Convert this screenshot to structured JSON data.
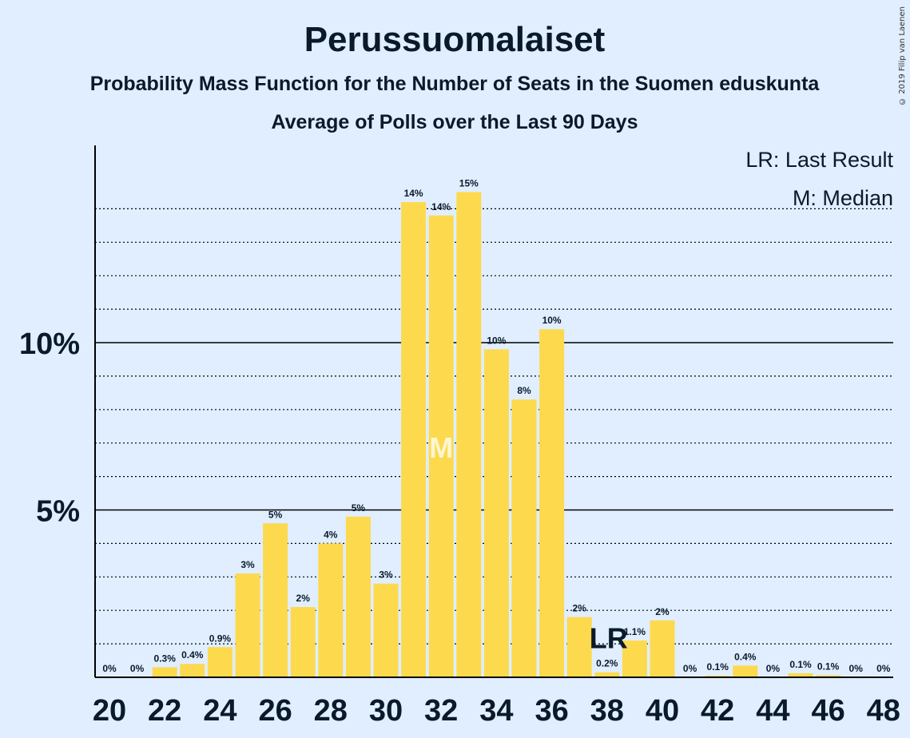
{
  "chart_data": {
    "type": "bar",
    "title": "Perussuomalaiset",
    "subtitle": "Probability Mass Function for the Number of Seats in the Suomen eduskunta",
    "subtitle2": "Average of Polls over the Last 90 Days",
    "copyright": "© 2019 Filip van Laenen",
    "legend": {
      "lr": "LR: Last Result",
      "median": "M: Median"
    },
    "y_tick_labels": [
      "5%",
      "10%"
    ],
    "y_ticks": [
      5,
      10
    ],
    "ylim": [
      0,
      15.9
    ],
    "x_tick_labels": [
      "20",
      "22",
      "24",
      "26",
      "28",
      "30",
      "32",
      "34",
      "36",
      "38",
      "40",
      "42",
      "44",
      "46",
      "48"
    ],
    "x": [
      20,
      21,
      22,
      23,
      24,
      25,
      26,
      27,
      28,
      29,
      30,
      31,
      32,
      33,
      34,
      35,
      36,
      37,
      38,
      39,
      40,
      41,
      42,
      43,
      44,
      45,
      46,
      47,
      48
    ],
    "values": [
      0,
      0,
      0.3,
      0.4,
      0.9,
      3.1,
      4.6,
      2.1,
      4.0,
      4.8,
      2.8,
      14.2,
      13.8,
      14.5,
      9.8,
      8.3,
      10.4,
      1.8,
      0.15,
      1.1,
      1.7,
      0,
      0.05,
      0.35,
      0,
      0.12,
      0.06,
      0,
      0
    ],
    "labels": [
      "0%",
      "0%",
      "0.3%",
      "0.4%",
      "0.9%",
      "3%",
      "5%",
      "2%",
      "4%",
      "5%",
      "3%",
      "14%",
      "14%",
      "15%",
      "10%",
      "8%",
      "10%",
      "2%",
      "0.2%",
      "1.1%",
      "2%",
      "0%",
      "0.1%",
      "0.4%",
      "0%",
      "0.1%",
      "0.1%",
      "0%",
      "0%"
    ],
    "median": 32,
    "median_marker": "M",
    "last_result": 38,
    "last_result_marker": "LR",
    "colors": {
      "bar": "#fdd94e",
      "background": "#e0eeff",
      "text": "#0a1a2a"
    }
  }
}
